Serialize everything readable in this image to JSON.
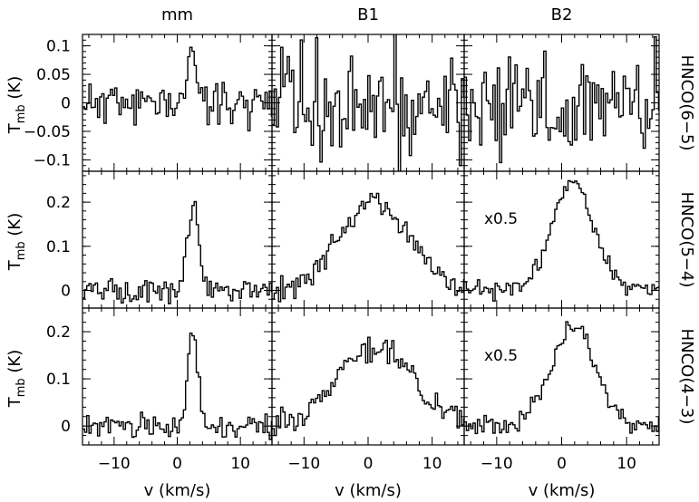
{
  "chart_data": {
    "type": "line",
    "style": "step",
    "layout": "3x3 grid of spectra",
    "columns": [
      "mm",
      "B1",
      "B2"
    ],
    "rows": [
      "HNCO(6−5)",
      "HNCO(5−4)",
      "HNCO(4−3)"
    ],
    "xlabel": "v (km/s)",
    "ylabel_main": "T",
    "ylabel_sub": "mb",
    "ylabel_unit": "(K)",
    "xlim": [
      -15,
      15
    ],
    "xticks": [
      -10,
      0,
      10
    ],
    "xtick_labels": [
      "−10",
      "0",
      "10"
    ],
    "row_axes": [
      {
        "ylim": [
          -0.12,
          0.12
        ],
        "ytick_labels": [
          "0.1",
          "0.05",
          "0",
          "−0.05",
          "−0.1"
        ],
        "yticks": [
          0.1,
          0.05,
          0,
          -0.05,
          -0.1
        ]
      },
      {
        "ylim": [
          -0.04,
          0.27
        ],
        "ytick_labels": [
          "0.2",
          "0.1",
          "0"
        ],
        "yticks": [
          0.2,
          0.1,
          0
        ]
      },
      {
        "ylim": [
          -0.04,
          0.25
        ],
        "ytick_labels": [
          "0.2",
          "0.1",
          "0"
        ],
        "yticks": [
          0.2,
          0.1,
          0
        ]
      }
    ],
    "scale_annotation": "x0.5",
    "panels": [
      {
        "row": 0,
        "col": 0,
        "noise": 0.018,
        "peak": 0.085,
        "center": 2.5,
        "width": 0.8,
        "seed": 11
      },
      {
        "row": 0,
        "col": 1,
        "noise": 0.055,
        "peak": 0.0,
        "center": 0,
        "width": 1,
        "seed": 12
      },
      {
        "row": 0,
        "col": 2,
        "noise": 0.045,
        "peak": 0.0,
        "center": 0,
        "width": 1,
        "seed": 13
      },
      {
        "row": 1,
        "col": 0,
        "noise": 0.012,
        "peak": 0.19,
        "center": 2.5,
        "width": 0.9,
        "seed": 21
      },
      {
        "row": 1,
        "col": 1,
        "noise": 0.013,
        "peak": 0.2,
        "center": 1.0,
        "width": 5.5,
        "seed": 22
      },
      {
        "row": 1,
        "col": 2,
        "noise": 0.01,
        "peak": 0.25,
        "center": 1.8,
        "width": 3.2,
        "seed": 23,
        "annotation": "x0.5"
      },
      {
        "row": 2,
        "col": 0,
        "noise": 0.012,
        "peak": 0.19,
        "center": 2.5,
        "width": 0.8,
        "seed": 31
      },
      {
        "row": 2,
        "col": 1,
        "noise": 0.013,
        "peak": 0.17,
        "center": 1.0,
        "width": 6.0,
        "seed": 32
      },
      {
        "row": 2,
        "col": 2,
        "noise": 0.01,
        "peak": 0.215,
        "center": 1.8,
        "width": 3.4,
        "seed": 33,
        "annotation": "x0.5"
      }
    ]
  }
}
